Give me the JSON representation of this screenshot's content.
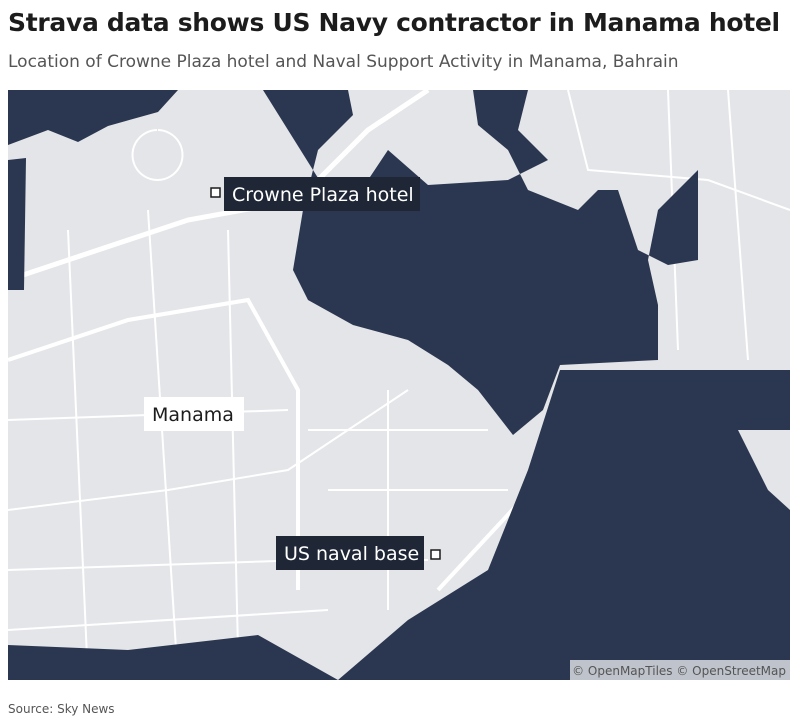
{
  "header": {
    "title": "Strava data shows US Navy contractor in Manama hotel",
    "subtitle": "Location of Crowne Plaza hotel and Naval Support Activity in Manama, Bahrain"
  },
  "map": {
    "labels": {
      "hotel": "Crowne Plaza hotel",
      "city": "Manama",
      "base": "US naval base"
    },
    "attribution": "© OpenMapTiles © OpenStreetMap"
  },
  "footer": {
    "source": "Source: Sky News"
  }
}
